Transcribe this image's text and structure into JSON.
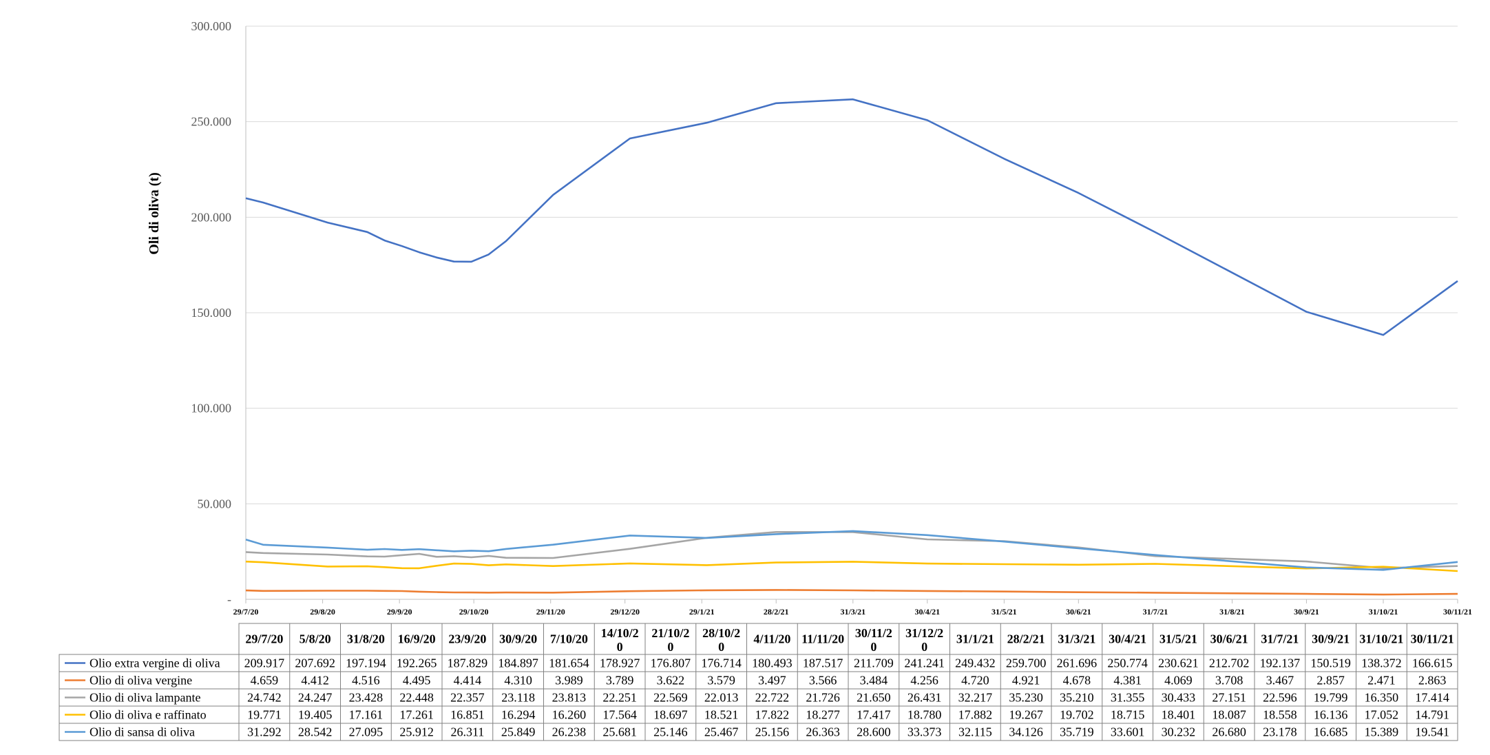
{
  "colors": {
    "grid": "#d9d9d9",
    "axis": "#bfbfbf",
    "table_border": "#808080"
  },
  "chart_data": {
    "type": "line",
    "ylabel": "Oli di oliva (t)",
    "ylim": [
      0,
      300000
    ],
    "yticks": [
      "-",
      "50.000",
      "100.000",
      "150.000",
      "200.000",
      "250.000",
      "300.000"
    ],
    "grid": "horizontal",
    "legend": "data-table",
    "axis_dates": [
      "29/7/20",
      "29/8/20",
      "29/9/20",
      "29/10/20",
      "29/11/20",
      "29/12/20",
      "29/1/21",
      "28/2/21",
      "31/3/21",
      "30/4/21",
      "31/5/21",
      "30/6/21",
      "31/7/21",
      "31/8/21",
      "30/9/21",
      "31/10/21",
      "30/11/21"
    ],
    "x": [
      "29/7/20",
      "5/8/20",
      "31/8/20",
      "16/9/20",
      "23/9/20",
      "30/9/20",
      "7/10/20",
      "14/10/20",
      "21/10/20",
      "28/10/20",
      "4/11/20",
      "11/11/20",
      "30/11/20",
      "31/12/20",
      "31/1/21",
      "28/2/21",
      "31/3/21",
      "30/4/21",
      "31/5/21",
      "30/6/21",
      "31/7/21",
      "30/9/21",
      "31/10/21",
      "30/11/21"
    ],
    "table_headers": [
      "29/7/20",
      "5/8/20",
      "31/8/20",
      "16/9/20",
      "23/9/20",
      "30/9/20",
      "7/10/20",
      "14/10/2\n0",
      "21/10/2\n0",
      "28/10/2\n0",
      "4/11/20",
      "11/11/20",
      "30/11/2\n0",
      "31/12/2\n0",
      "31/1/21",
      "28/2/21",
      "31/3/21",
      "30/4/21",
      "31/5/21",
      "30/6/21",
      "31/7/21",
      "30/9/21",
      "31/10/21",
      "30/11/21"
    ],
    "series": [
      {
        "name": "Olio extra vergine di oliva",
        "color": "#4472c4",
        "values": [
          209917,
          207692,
          197194,
          192265,
          187829,
          184897,
          181654,
          178927,
          176807,
          176714,
          180493,
          187517,
          211709,
          241241,
          249432,
          259700,
          261696,
          250774,
          230621,
          212702,
          192137,
          150519,
          138372,
          166615
        ],
        "labels": [
          "209.917",
          "207.692",
          "197.194",
          "192.265",
          "187.829",
          "184.897",
          "181.654",
          "178.927",
          "176.807",
          "176.714",
          "180.493",
          "187.517",
          "211.709",
          "241.241",
          "249.432",
          "259.700",
          "261.696",
          "250.774",
          "230.621",
          "212.702",
          "192.137",
          "150.519",
          "138.372",
          "166.615"
        ]
      },
      {
        "name": "Olio di oliva vergine",
        "color": "#ed7d31",
        "values": [
          4659,
          4412,
          4516,
          4495,
          4414,
          4310,
          3989,
          3789,
          3622,
          3579,
          3497,
          3566,
          3484,
          4256,
          4720,
          4921,
          4678,
          4381,
          4069,
          3708,
          3467,
          2857,
          2471,
          2863
        ],
        "labels": [
          "4.659",
          "4.412",
          "4.516",
          "4.495",
          "4.414",
          "4.310",
          "3.989",
          "3.789",
          "3.622",
          "3.579",
          "3.497",
          "3.566",
          "3.484",
          "4.256",
          "4.720",
          "4.921",
          "4.678",
          "4.381",
          "4.069",
          "3.708",
          "3.467",
          "2.857",
          "2.471",
          "2.863"
        ]
      },
      {
        "name": "Olio di oliva lampante",
        "color": "#a5a5a5",
        "values": [
          24742,
          24247,
          23428,
          22448,
          22357,
          23118,
          23813,
          22251,
          22569,
          22013,
          22722,
          21726,
          21650,
          26431,
          32217,
          35230,
          35210,
          31355,
          30433,
          27151,
          22596,
          19799,
          16350,
          17414
        ],
        "labels": [
          "24.742",
          "24.247",
          "23.428",
          "22.448",
          "22.357",
          "23.118",
          "23.813",
          "22.251",
          "22.569",
          "22.013",
          "22.722",
          "21.726",
          "21.650",
          "26.431",
          "32.217",
          "35.230",
          "35.210",
          "31.355",
          "30.433",
          "27.151",
          "22.596",
          "19.799",
          "16.350",
          "17.414"
        ]
      },
      {
        "name": "Olio di oliva e raffinato",
        "color": "#ffc000",
        "values": [
          19771,
          19405,
          17161,
          17261,
          16851,
          16294,
          16260,
          17564,
          18697,
          18521,
          17822,
          18277,
          17417,
          18780,
          17882,
          19267,
          19702,
          18715,
          18401,
          18087,
          18558,
          16136,
          17052,
          14791
        ],
        "labels": [
          "19.771",
          "19.405",
          "17.161",
          "17.261",
          "16.851",
          "16.294",
          "16.260",
          "17.564",
          "18.697",
          "18.521",
          "17.822",
          "18.277",
          "17.417",
          "18.780",
          "17.882",
          "19.267",
          "19.702",
          "18.715",
          "18.401",
          "18.087",
          "18.558",
          "16.136",
          "17.052",
          "14.791"
        ]
      },
      {
        "name": "Olio di sansa di oliva",
        "color": "#5b9bd5",
        "values": [
          31292,
          28542,
          27095,
          25912,
          26311,
          25849,
          26238,
          25681,
          25146,
          25467,
          25156,
          26363,
          28600,
          33373,
          32115,
          34126,
          35719,
          33601,
          30232,
          26680,
          23178,
          16685,
          15389,
          19541
        ],
        "labels": [
          "31.292",
          "28.542",
          "27.095",
          "25.912",
          "26.311",
          "25.849",
          "26.238",
          "25.681",
          "25.146",
          "25.467",
          "25.156",
          "26.363",
          "28.600",
          "33.373",
          "32.115",
          "34.126",
          "35.719",
          "33.601",
          "30.232",
          "26.680",
          "23.178",
          "16.685",
          "15.389",
          "19.541"
        ]
      }
    ]
  }
}
